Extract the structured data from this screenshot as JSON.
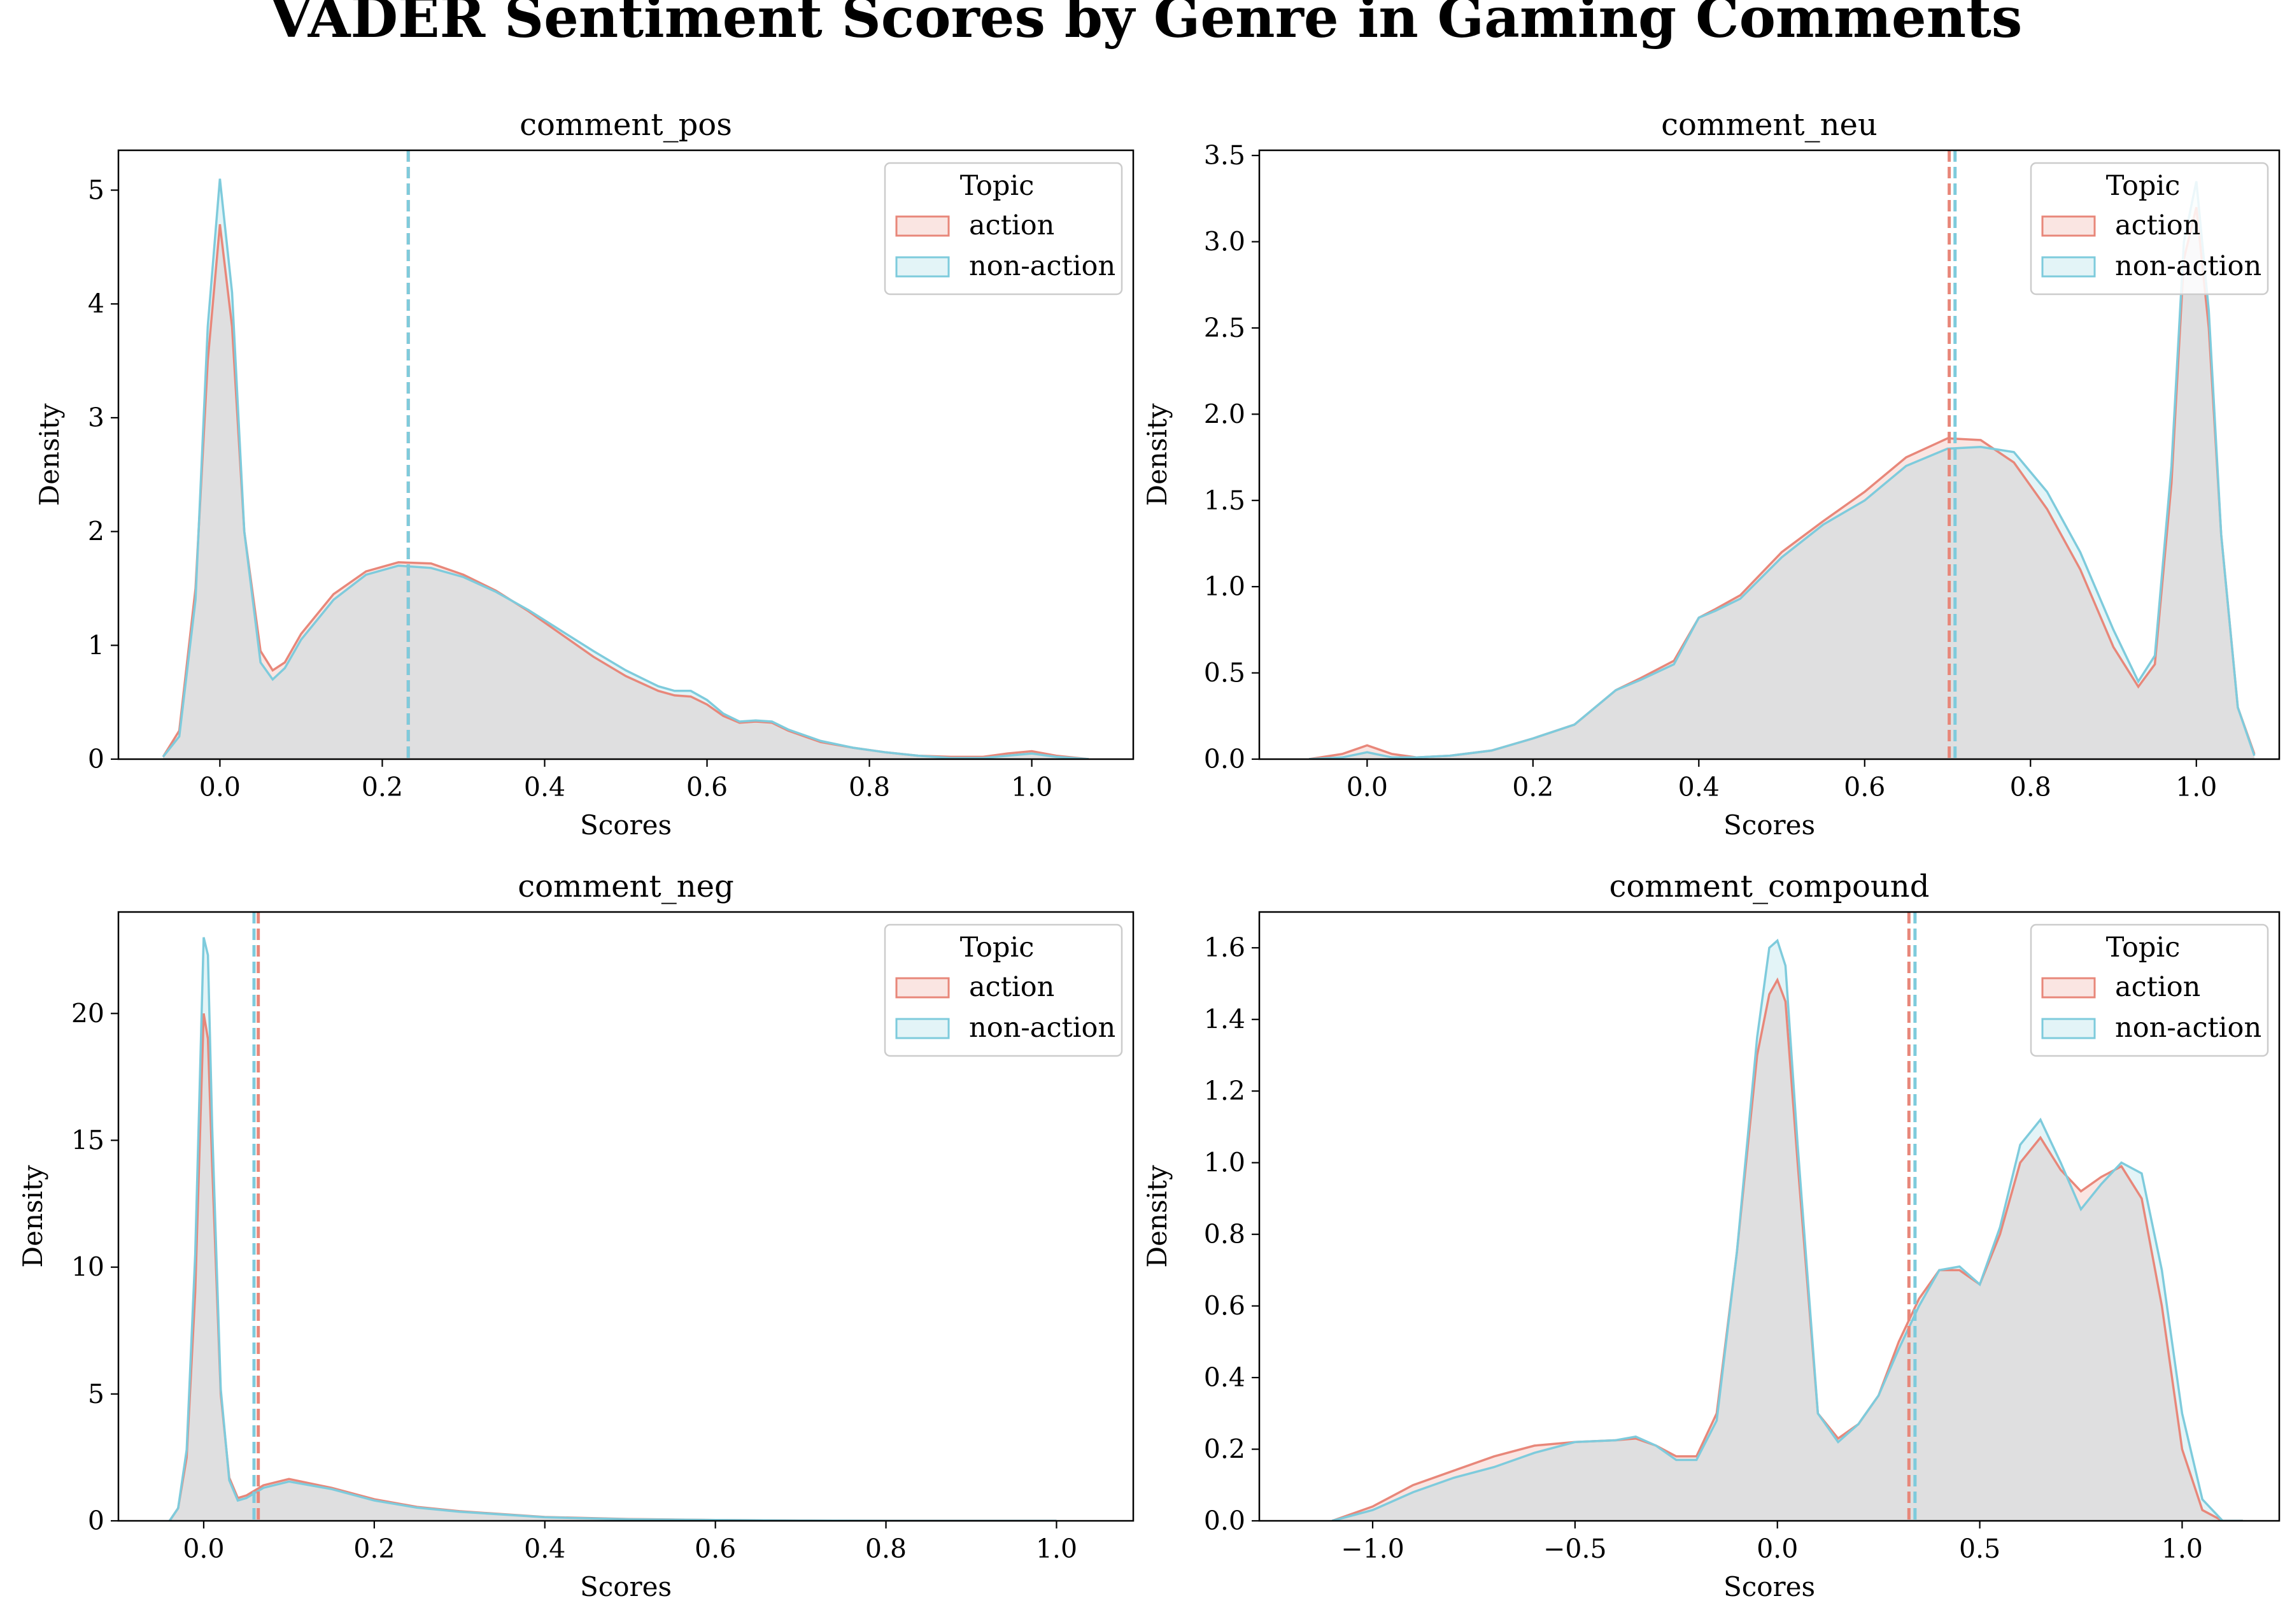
{
  "figure": {
    "title": "VADER Sentiment Scores by Genre in Gaming Comments"
  },
  "colors": {
    "action": "#e8877a",
    "non_action": "#7ecbdc",
    "overlap_fill": "#e2e6e6"
  },
  "chart_data": [
    {
      "type": "area",
      "title": "comment_pos",
      "xlabel": "Scores",
      "ylabel": "Density",
      "xlim": [
        -0.125,
        1.125
      ],
      "ylim": [
        0,
        5.35
      ],
      "xticks": [
        0.0,
        0.2,
        0.4,
        0.6,
        0.8,
        1.0
      ],
      "xtick_labels": [
        "0.0",
        "0.2",
        "0.4",
        "0.6",
        "0.8",
        "1.0"
      ],
      "yticks": [
        0,
        1,
        2,
        3,
        4,
        5
      ],
      "ytick_labels": [
        "0",
        "1",
        "2",
        "3",
        "4",
        "5"
      ],
      "legend": {
        "title": "Topic",
        "position": "top-right",
        "entries": [
          "action",
          "non-action"
        ]
      },
      "series": [
        {
          "name": "action",
          "mean": 0.232,
          "x": [
            -0.07,
            -0.05,
            -0.03,
            -0.015,
            0.0,
            0.015,
            0.03,
            0.05,
            0.065,
            0.08,
            0.1,
            0.14,
            0.18,
            0.22,
            0.26,
            0.3,
            0.34,
            0.38,
            0.42,
            0.46,
            0.5,
            0.54,
            0.56,
            0.58,
            0.6,
            0.62,
            0.64,
            0.66,
            0.68,
            0.7,
            0.74,
            0.78,
            0.82,
            0.86,
            0.9,
            0.94,
            0.97,
            1.0,
            1.03,
            1.07
          ],
          "y": [
            0.02,
            0.25,
            1.5,
            3.5,
            4.7,
            3.8,
            2.0,
            0.95,
            0.78,
            0.85,
            1.1,
            1.45,
            1.65,
            1.73,
            1.72,
            1.62,
            1.48,
            1.3,
            1.1,
            0.9,
            0.73,
            0.6,
            0.56,
            0.55,
            0.48,
            0.38,
            0.32,
            0.33,
            0.32,
            0.25,
            0.15,
            0.1,
            0.06,
            0.03,
            0.02,
            0.02,
            0.05,
            0.07,
            0.03,
            0.0
          ]
        },
        {
          "name": "non-action",
          "mean": 0.232,
          "x": [
            -0.07,
            -0.05,
            -0.03,
            -0.015,
            0.0,
            0.015,
            0.03,
            0.05,
            0.065,
            0.08,
            0.1,
            0.14,
            0.18,
            0.22,
            0.26,
            0.3,
            0.34,
            0.38,
            0.42,
            0.46,
            0.5,
            0.54,
            0.56,
            0.58,
            0.6,
            0.62,
            0.64,
            0.66,
            0.68,
            0.7,
            0.74,
            0.78,
            0.82,
            0.86,
            0.9,
            0.94,
            0.97,
            1.0,
            1.03,
            1.07
          ],
          "y": [
            0.02,
            0.2,
            1.4,
            3.8,
            5.1,
            4.1,
            2.0,
            0.85,
            0.7,
            0.8,
            1.05,
            1.4,
            1.62,
            1.7,
            1.68,
            1.6,
            1.47,
            1.31,
            1.13,
            0.95,
            0.78,
            0.64,
            0.6,
            0.6,
            0.52,
            0.4,
            0.33,
            0.34,
            0.33,
            0.26,
            0.16,
            0.1,
            0.06,
            0.03,
            0.01,
            0.01,
            0.03,
            0.05,
            0.02,
            0.0
          ]
        }
      ]
    },
    {
      "type": "area",
      "title": "comment_neu",
      "xlabel": "Scores",
      "ylabel": "Density",
      "xlim": [
        -0.13,
        1.1
      ],
      "ylim": [
        0,
        3.53
      ],
      "xticks": [
        0.0,
        0.2,
        0.4,
        0.6,
        0.8,
        1.0
      ],
      "xtick_labels": [
        "0.0",
        "0.2",
        "0.4",
        "0.6",
        "0.8",
        "1.0"
      ],
      "yticks": [
        0.0,
        0.5,
        1.0,
        1.5,
        2.0,
        2.5,
        3.0,
        3.5
      ],
      "ytick_labels": [
        "0.0",
        "0.5",
        "1.0",
        "1.5",
        "2.0",
        "2.5",
        "3.0",
        "3.5"
      ],
      "legend": {
        "title": "Topic",
        "position": "top-right",
        "entries": [
          "action",
          "non-action"
        ]
      },
      "series": [
        {
          "name": "action",
          "mean": 0.702,
          "x": [
            -0.07,
            -0.03,
            0.0,
            0.03,
            0.06,
            0.1,
            0.15,
            0.2,
            0.25,
            0.3,
            0.33,
            0.37,
            0.4,
            0.42,
            0.45,
            0.5,
            0.55,
            0.6,
            0.65,
            0.7,
            0.74,
            0.78,
            0.82,
            0.86,
            0.9,
            0.93,
            0.95,
            0.97,
            0.985,
            1.0,
            1.015,
            1.03,
            1.05,
            1.07
          ],
          "y": [
            0.0,
            0.03,
            0.08,
            0.03,
            0.01,
            0.02,
            0.05,
            0.12,
            0.2,
            0.4,
            0.47,
            0.57,
            0.82,
            0.87,
            0.95,
            1.2,
            1.38,
            1.55,
            1.75,
            1.86,
            1.85,
            1.72,
            1.45,
            1.1,
            0.65,
            0.42,
            0.55,
            1.6,
            2.9,
            3.2,
            2.5,
            1.3,
            0.3,
            0.03
          ]
        },
        {
          "name": "non-action",
          "mean": 0.709,
          "x": [
            -0.07,
            -0.03,
            0.0,
            0.03,
            0.06,
            0.1,
            0.15,
            0.2,
            0.25,
            0.3,
            0.33,
            0.37,
            0.4,
            0.42,
            0.45,
            0.5,
            0.55,
            0.6,
            0.65,
            0.7,
            0.74,
            0.78,
            0.82,
            0.86,
            0.9,
            0.93,
            0.95,
            0.97,
            0.985,
            1.0,
            1.015,
            1.03,
            1.05,
            1.07
          ],
          "y": [
            0.0,
            0.01,
            0.04,
            0.01,
            0.01,
            0.02,
            0.05,
            0.12,
            0.2,
            0.4,
            0.46,
            0.55,
            0.82,
            0.86,
            0.93,
            1.17,
            1.36,
            1.5,
            1.7,
            1.8,
            1.81,
            1.78,
            1.55,
            1.2,
            0.75,
            0.45,
            0.6,
            1.7,
            3.0,
            3.35,
            2.6,
            1.3,
            0.3,
            0.02
          ]
        }
      ]
    },
    {
      "type": "area",
      "title": "comment_neg",
      "xlabel": "Scores",
      "ylabel": "Density",
      "xlim": [
        -0.1,
        1.09
      ],
      "ylim": [
        0,
        24.0
      ],
      "xticks": [
        0.0,
        0.2,
        0.4,
        0.6,
        0.8,
        1.0
      ],
      "xtick_labels": [
        "0.0",
        "0.2",
        "0.4",
        "0.6",
        "0.8",
        "1.0"
      ],
      "yticks": [
        0,
        5,
        10,
        15,
        20
      ],
      "ytick_labels": [
        "0",
        "5",
        "10",
        "15",
        "20"
      ],
      "legend": {
        "title": "Topic",
        "position": "top-right",
        "entries": [
          "action",
          "non-action"
        ]
      },
      "series": [
        {
          "name": "action",
          "mean": 0.064,
          "x": [
            -0.04,
            -0.03,
            -0.02,
            -0.01,
            0.0,
            0.005,
            0.01,
            0.02,
            0.03,
            0.04,
            0.05,
            0.07,
            0.1,
            0.15,
            0.2,
            0.25,
            0.3,
            0.4,
            0.5,
            0.6,
            0.7,
            0.8,
            0.9,
            1.0
          ],
          "y": [
            0.0,
            0.5,
            2.5,
            9.0,
            20.0,
            19.0,
            14.0,
            5.0,
            1.7,
            0.9,
            1.0,
            1.4,
            1.65,
            1.3,
            0.85,
            0.55,
            0.38,
            0.15,
            0.07,
            0.03,
            0.01,
            0.0,
            0.0,
            0.0
          ]
        },
        {
          "name": "non-action",
          "mean": 0.059,
          "x": [
            -0.04,
            -0.03,
            -0.02,
            -0.01,
            0.0,
            0.005,
            0.01,
            0.02,
            0.03,
            0.04,
            0.05,
            0.07,
            0.1,
            0.15,
            0.2,
            0.25,
            0.3,
            0.4,
            0.5,
            0.6,
            0.7,
            0.8,
            0.9,
            1.0
          ],
          "y": [
            0.0,
            0.5,
            2.8,
            10.5,
            23.0,
            22.3,
            15.5,
            5.2,
            1.6,
            0.8,
            0.9,
            1.3,
            1.55,
            1.25,
            0.8,
            0.52,
            0.36,
            0.14,
            0.06,
            0.03,
            0.01,
            0.0,
            0.0,
            0.0
          ]
        }
      ]
    },
    {
      "type": "area",
      "title": "comment_compound",
      "xlabel": "Scores",
      "ylabel": "Density",
      "xlim": [
        -1.28,
        1.24
      ],
      "ylim": [
        0,
        1.7
      ],
      "xticks": [
        -1.0,
        -0.5,
        0.0,
        0.5,
        1.0
      ],
      "xtick_labels": [
        "−1.0",
        "−0.5",
        "0.0",
        "0.5",
        "1.0"
      ],
      "yticks": [
        0.0,
        0.2,
        0.4,
        0.6,
        0.8,
        1.0,
        1.2,
        1.4,
        1.6
      ],
      "ytick_labels": [
        "0.0",
        "0.2",
        "0.4",
        "0.6",
        "0.8",
        "1.0",
        "1.2",
        "1.4",
        "1.6"
      ],
      "legend": {
        "title": "Topic",
        "position": "top-right",
        "entries": [
          "action",
          "non-action"
        ]
      },
      "series": [
        {
          "name": "action",
          "mean": 0.325,
          "x": [
            -1.1,
            -1.0,
            -0.9,
            -0.8,
            -0.7,
            -0.6,
            -0.5,
            -0.4,
            -0.35,
            -0.3,
            -0.25,
            -0.2,
            -0.15,
            -0.1,
            -0.05,
            -0.02,
            0.0,
            0.02,
            0.05,
            0.1,
            0.15,
            0.2,
            0.25,
            0.3,
            0.35,
            0.4,
            0.45,
            0.5,
            0.55,
            0.6,
            0.65,
            0.7,
            0.75,
            0.8,
            0.85,
            0.9,
            0.95,
            1.0,
            1.05,
            1.1,
            1.15
          ],
          "y": [
            0.0,
            0.04,
            0.1,
            0.14,
            0.18,
            0.21,
            0.22,
            0.225,
            0.23,
            0.21,
            0.18,
            0.18,
            0.3,
            0.75,
            1.3,
            1.47,
            1.51,
            1.45,
            1.0,
            0.3,
            0.23,
            0.27,
            0.35,
            0.5,
            0.62,
            0.7,
            0.7,
            0.66,
            0.8,
            1.0,
            1.07,
            0.98,
            0.92,
            0.96,
            0.99,
            0.9,
            0.6,
            0.2,
            0.03,
            0.0,
            0.0
          ]
        },
        {
          "name": "non-action",
          "mean": 0.34,
          "x": [
            -1.1,
            -1.0,
            -0.9,
            -0.8,
            -0.7,
            -0.6,
            -0.5,
            -0.4,
            -0.35,
            -0.3,
            -0.25,
            -0.2,
            -0.15,
            -0.1,
            -0.05,
            -0.02,
            0.0,
            0.02,
            0.05,
            0.1,
            0.15,
            0.2,
            0.25,
            0.3,
            0.35,
            0.4,
            0.45,
            0.5,
            0.55,
            0.6,
            0.65,
            0.7,
            0.75,
            0.8,
            0.85,
            0.9,
            0.95,
            1.0,
            1.05,
            1.1,
            1.15
          ],
          "y": [
            0.0,
            0.03,
            0.08,
            0.12,
            0.15,
            0.19,
            0.22,
            0.225,
            0.235,
            0.21,
            0.17,
            0.17,
            0.28,
            0.75,
            1.35,
            1.6,
            1.62,
            1.55,
            1.05,
            0.3,
            0.22,
            0.27,
            0.35,
            0.48,
            0.6,
            0.7,
            0.71,
            0.66,
            0.82,
            1.05,
            1.12,
            1.0,
            0.87,
            0.94,
            1.0,
            0.97,
            0.7,
            0.3,
            0.06,
            0.0,
            0.0
          ]
        }
      ]
    }
  ]
}
